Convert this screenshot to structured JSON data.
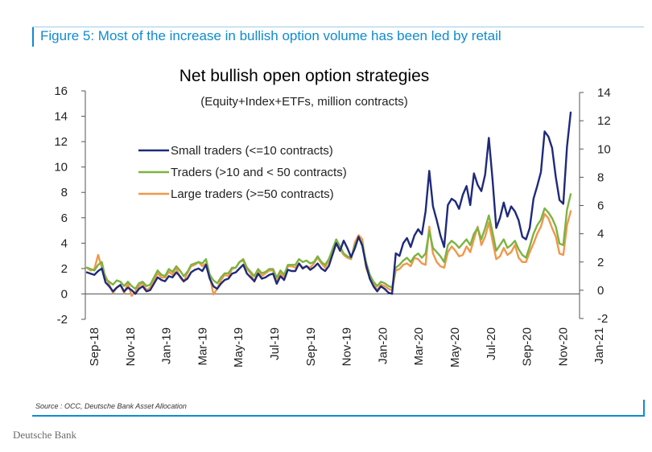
{
  "figure_title": "Figure 5: Most of the increase in bullish option volume has been led by retail",
  "source": "Source : OCC, Deutsche Bank Asset Allocation",
  "brand": "Deutsche Bank",
  "chart_data": {
    "type": "line",
    "title": "Net bullish open option strategies",
    "subtitle": "(Equity+Index+ETFs, million contracts)",
    "left_axis": {
      "min": -2,
      "max": 16,
      "ticks": [
        "-2",
        "0",
        "2",
        "4",
        "6",
        "8",
        "10",
        "12",
        "14",
        "16"
      ]
    },
    "right_axis": {
      "min": -2,
      "max": 14,
      "ticks": [
        "-2",
        "0",
        "2",
        "4",
        "6",
        "8",
        "10",
        "12",
        "14"
      ]
    },
    "x_tick_labels": [
      "Sep-18",
      "Nov-18",
      "Jan-19",
      "Mar-19",
      "May-19",
      "Jul-19",
      "Sep-19",
      "Nov-19",
      "Jan-20",
      "Mar-20",
      "May-20",
      "Jul-20",
      "Sep-20",
      "Nov-20",
      "Jan-21"
    ],
    "legend_position": "upper-left",
    "grid": false,
    "series": [
      {
        "name": "Small traders (<=10 contracts)",
        "color": "#1f2a7a",
        "axis": "left",
        "values": [
          1.7,
          1.6,
          1.5,
          1.8,
          2.0,
          0.9,
          0.6,
          0.2,
          0.5,
          0.7,
          0.2,
          0.5,
          0.3,
          0.0,
          0.4,
          0.6,
          0.2,
          0.3,
          0.8,
          1.3,
          1.1,
          1.0,
          1.4,
          1.3,
          1.7,
          1.4,
          1.0,
          1.2,
          1.7,
          1.9,
          2.0,
          1.8,
          2.3,
          1.2,
          0.6,
          0.4,
          0.8,
          1.1,
          1.2,
          1.6,
          1.7,
          2.0,
          2.3,
          1.6,
          1.3,
          1.0,
          1.6,
          1.2,
          1.3,
          1.5,
          1.6,
          0.8,
          1.4,
          1.1,
          1.9,
          1.8,
          1.8,
          2.4,
          2.0,
          2.2,
          1.9,
          2.1,
          2.4,
          2.0,
          1.8,
          2.2,
          3.1,
          4.0,
          3.4,
          4.2,
          3.6,
          2.9,
          3.6,
          4.5,
          3.8,
          2.3,
          1.2,
          0.6,
          0.2,
          0.6,
          0.4,
          0.1,
          0.0,
          3.2,
          3.0,
          4.0,
          4.4,
          3.7,
          4.6,
          5.1,
          4.7,
          6.5,
          9.7,
          6.9,
          5.8,
          4.6,
          3.7,
          7.0,
          7.5,
          7.3,
          6.7,
          7.8,
          8.5,
          7.0,
          9.5,
          8.6,
          8.1,
          9.4,
          12.3,
          9.0,
          5.2,
          6.0,
          7.2,
          6.1,
          6.9,
          6.5,
          5.8,
          4.5,
          4.3,
          5.2,
          7.5,
          8.5,
          9.6,
          12.8,
          12.4,
          11.5,
          9.2,
          7.4,
          7.1,
          11.6,
          14.3
        ]
      },
      {
        "name": "Traders (>10 and < 50 contracts)",
        "color": "#7cb342",
        "axis": "right",
        "values": [
          1.6,
          1.5,
          1.4,
          1.8,
          2.0,
          0.8,
          0.6,
          0.4,
          0.7,
          0.6,
          0.3,
          0.6,
          0.3,
          0.1,
          0.5,
          0.6,
          0.3,
          0.4,
          0.9,
          1.4,
          1.1,
          1.0,
          1.5,
          1.3,
          1.7,
          1.4,
          1.0,
          1.3,
          1.8,
          1.9,
          2.0,
          1.9,
          2.2,
          1.1,
          0.7,
          0.5,
          0.9,
          1.2,
          1.2,
          1.6,
          1.6,
          2.0,
          2.2,
          1.6,
          1.3,
          1.0,
          1.5,
          1.2,
          1.3,
          1.5,
          1.5,
          0.9,
          1.4,
          1.1,
          1.8,
          1.8,
          1.8,
          2.2,
          2.0,
          2.1,
          1.9,
          2.0,
          2.4,
          2.0,
          1.8,
          2.2,
          2.9,
          3.6,
          3.1,
          2.6,
          2.4,
          2.3,
          3.2,
          3.7,
          3.3,
          2.0,
          1.1,
          0.6,
          0.3,
          0.6,
          0.5,
          0.3,
          0.2,
          1.6,
          1.8,
          2.1,
          2.3,
          2.0,
          2.4,
          2.6,
          2.3,
          2.6,
          4.2,
          3.0,
          2.7,
          2.4,
          2.0,
          3.2,
          3.5,
          3.3,
          3.0,
          3.3,
          3.6,
          3.2,
          4.0,
          4.4,
          3.6,
          4.4,
          5.3,
          4.1,
          2.8,
          3.2,
          3.6,
          3.0,
          3.2,
          3.5,
          2.9,
          2.5,
          2.3,
          3.1,
          4.0,
          4.6,
          5.0,
          5.8,
          5.5,
          5.1,
          4.5,
          3.3,
          3.2,
          5.7,
          6.8
        ]
      },
      {
        "name": "Large traders (>=50 contracts)",
        "color": "#f0984a",
        "axis": "right",
        "values": [
          1.6,
          1.4,
          1.5,
          2.5,
          1.6,
          1.0,
          0.4,
          -0.2,
          0.2,
          0.4,
          -0.2,
          0.5,
          -0.4,
          -0.1,
          0.3,
          0.5,
          0.0,
          0.2,
          0.7,
          1.2,
          0.9,
          0.9,
          1.3,
          1.1,
          1.6,
          0.9,
          0.6,
          1.2,
          1.7,
          1.8,
          2.0,
          1.7,
          1.9,
          1.0,
          -0.3,
          0.1,
          0.7,
          1.1,
          1.0,
          1.5,
          1.6,
          2.0,
          2.1,
          1.5,
          1.2,
          0.6,
          1.4,
          1.0,
          1.2,
          1.4,
          1.4,
          0.6,
          1.2,
          0.9,
          1.7,
          1.7,
          1.6,
          1.9,
          1.6,
          1.7,
          1.6,
          1.9,
          2.3,
          1.9,
          1.6,
          2.1,
          2.5,
          3.3,
          2.9,
          2.5,
          2.3,
          2.2,
          3.4,
          3.9,
          3.6,
          1.6,
          0.9,
          0.5,
          0.0,
          0.4,
          0.3,
          0.1,
          0.0,
          1.4,
          1.5,
          1.8,
          1.9,
          1.7,
          2.3,
          2.2,
          1.9,
          1.8,
          4.5,
          2.6,
          2.0,
          1.7,
          1.6,
          2.7,
          3.1,
          2.8,
          2.4,
          2.5,
          3.1,
          2.7,
          3.6,
          4.5,
          3.2,
          3.8,
          4.8,
          3.5,
          2.2,
          2.4,
          3.0,
          2.5,
          2.7,
          3.2,
          2.3,
          2.0,
          2.0,
          2.7,
          3.3,
          4.0,
          4.5,
          5.4,
          5.1,
          4.4,
          3.8,
          2.6,
          2.5,
          4.6,
          5.6
        ]
      }
    ]
  }
}
